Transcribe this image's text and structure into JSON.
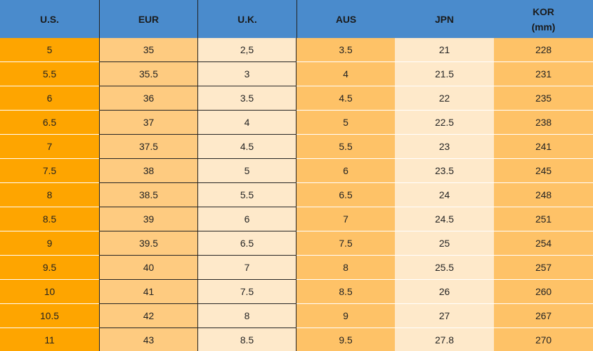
{
  "table": {
    "header": [
      "U.S.",
      "EUR",
      "U.K.",
      "AUS",
      "JPN",
      "KOR\n(mm)"
    ],
    "rows": [
      [
        "5",
        "35",
        "2,5",
        "3.5",
        "21",
        "228"
      ],
      [
        "5.5",
        "35.5",
        "3",
        "4",
        "21.5",
        "231"
      ],
      [
        "6",
        "36",
        "3.5",
        "4.5",
        "22",
        "235"
      ],
      [
        "6.5",
        "37",
        "4",
        "5",
        "22.5",
        "238"
      ],
      [
        "7",
        "37.5",
        "4.5",
        "5.5",
        "23",
        "241"
      ],
      [
        "7.5",
        "38",
        "5",
        "6",
        "23.5",
        "245"
      ],
      [
        "8",
        "38.5",
        "5.5",
        "6.5",
        "24",
        "248"
      ],
      [
        "8.5",
        "39",
        "6",
        "7",
        "24.5",
        "251"
      ],
      [
        "9",
        "39.5",
        "6.5",
        "7.5",
        "25",
        "254"
      ],
      [
        "9.5",
        "40",
        "7",
        "8",
        "25.5",
        "257"
      ],
      [
        "10",
        "41",
        "7.5",
        "8.5",
        "26",
        "260"
      ],
      [
        "10.5",
        "42",
        "8",
        "9",
        "27",
        "267"
      ],
      [
        "11",
        "43",
        "8.5",
        "9.5",
        "27.8",
        "270"
      ]
    ]
  }
}
